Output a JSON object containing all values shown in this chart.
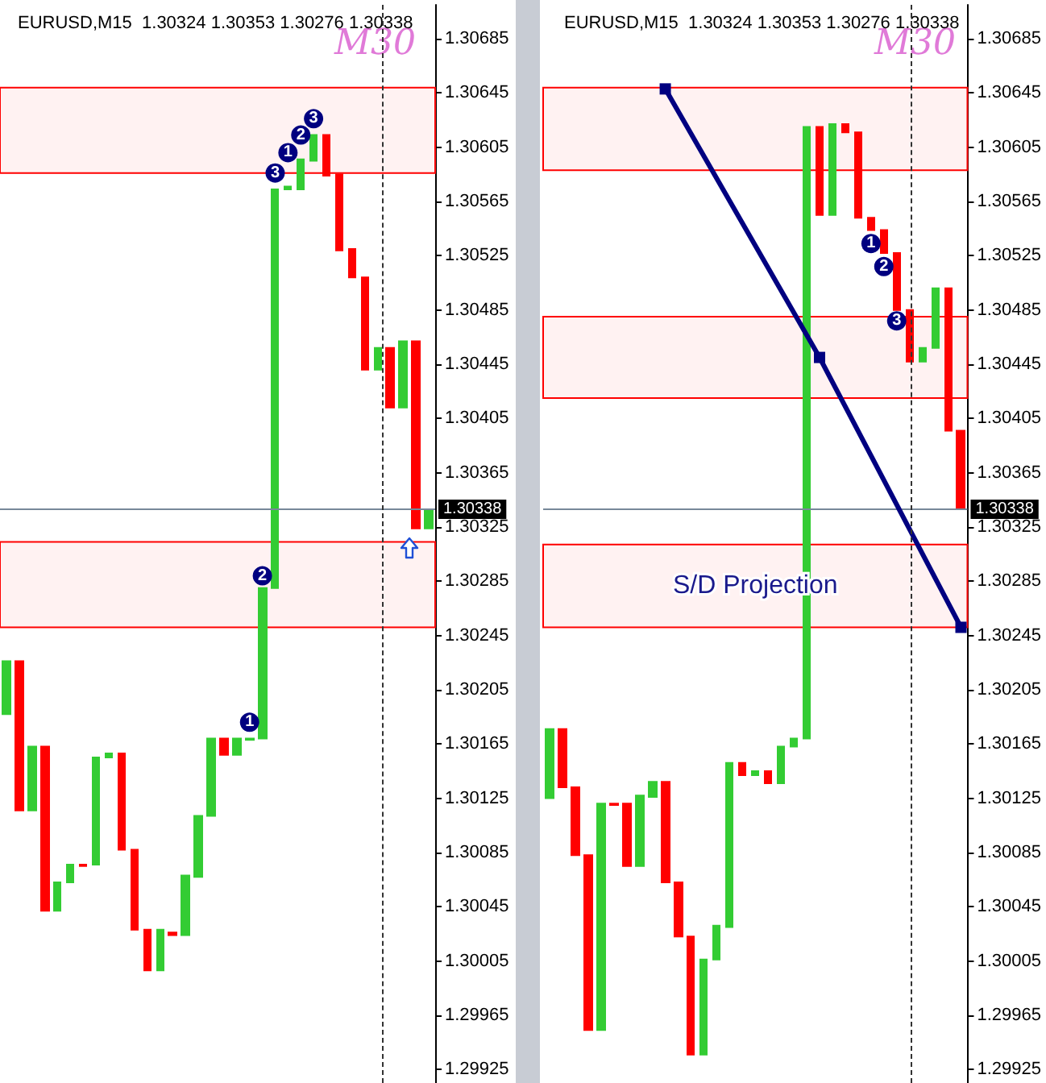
{
  "chart_data": [
    {
      "type": "candlestick",
      "title": "EURUSD,M15  1.30324 1.30353 1.30276 1.30338",
      "annotations": [
        "M30"
      ],
      "categories": [
        null,
        null,
        null,
        null,
        null,
        null,
        null,
        null,
        null,
        null,
        null,
        null,
        null,
        null,
        null,
        null,
        null,
        null,
        null,
        null,
        null,
        null,
        null,
        null,
        null,
        null,
        null,
        null,
        null,
        null,
        null,
        null,
        null,
        null
      ],
      "ylim": [
        1.29915,
        1.3071
      ],
      "yticks": [
        1.29925,
        1.29965,
        1.30005,
        1.30045,
        1.30085,
        1.30125,
        1.30165,
        1.30205,
        1.30245,
        1.30285,
        1.30325,
        1.30365,
        1.30405,
        1.30445,
        1.30485,
        1.30525,
        1.30565,
        1.30605,
        1.30645,
        1.30685
      ],
      "tick_labels": "y",
      "grid": false,
      "ohlc": [
        [
          1.30187,
          1.30226,
          1.30187,
          1.30226
        ],
        [
          1.30226,
          1.30226,
          1.30116,
          1.30116
        ],
        [
          1.30116,
          1.30163,
          1.30116,
          1.30163
        ],
        [
          1.30163,
          1.30163,
          1.30042,
          1.30042
        ],
        [
          1.30042,
          1.30063,
          1.30042,
          1.30063
        ],
        [
          1.30063,
          1.30076,
          1.30063,
          1.30076
        ],
        [
          1.30076,
          1.30076,
          1.30075,
          1.30075
        ],
        [
          1.30076,
          1.30155,
          1.30076,
          1.30155
        ],
        [
          1.30155,
          1.30158,
          1.30155,
          1.30158
        ],
        [
          1.30158,
          1.30158,
          1.30087,
          1.30087
        ],
        [
          1.30087,
          1.30087,
          1.30028,
          1.30028
        ],
        [
          1.30028,
          1.30028,
          1.29998,
          1.29998
        ],
        [
          1.29998,
          1.30028,
          1.29998,
          1.30028
        ],
        [
          1.30026,
          1.30026,
          1.30024,
          1.30024
        ],
        [
          1.30024,
          1.30068,
          1.30024,
          1.30068
        ],
        [
          1.30067,
          1.30112,
          1.30067,
          1.30112
        ],
        [
          1.30112,
          1.30169,
          1.30112,
          1.30169
        ],
        [
          1.30169,
          1.30169,
          1.30157,
          1.30157
        ],
        [
          1.30157,
          1.30169,
          1.30157,
          1.30169
        ],
        [
          1.30168,
          1.30169,
          1.30168,
          1.30169
        ],
        [
          1.30169,
          1.3028,
          1.30169,
          1.3028
        ],
        [
          1.3028,
          1.30574,
          1.3028,
          1.30574
        ],
        [
          1.30574,
          1.30576,
          1.30574,
          1.30576
        ],
        [
          1.30574,
          1.30596,
          1.30574,
          1.30596
        ],
        [
          1.30595,
          1.30614,
          1.30595,
          1.30614
        ],
        [
          1.30614,
          1.30614,
          1.30584,
          1.30584
        ],
        [
          1.30585,
          1.30585,
          1.30529,
          1.30529
        ],
        [
          1.3053,
          1.3053,
          1.30509,
          1.30509
        ],
        [
          1.30509,
          1.30509,
          1.30441,
          1.30441
        ],
        [
          1.30441,
          1.30457,
          1.30441,
          1.30457
        ],
        [
          1.30457,
          1.30457,
          1.30413,
          1.30413
        ],
        [
          1.30413,
          1.30462,
          1.30413,
          1.30462
        ],
        [
          1.30462,
          1.30462,
          1.30324,
          1.30324
        ],
        [
          1.30324,
          1.30338,
          1.30324,
          1.30338
        ]
      ],
      "colors": [
        "#33cc33",
        "#ff0000",
        "#33cc33",
        "#ff0000",
        "#33cc33",
        "#33cc33",
        "#ff0000",
        "#33cc33",
        "#33cc33",
        "#ff0000",
        "#ff0000",
        "#ff0000",
        "#33cc33",
        "#ff0000",
        "#33cc33",
        "#33cc33",
        "#33cc33",
        "#ff0000",
        "#33cc33",
        "#33cc33",
        "#33cc33",
        "#33cc33",
        "#33cc33",
        "#33cc33",
        "#33cc33",
        "#ff0000",
        "#ff0000",
        "#ff0000",
        "#ff0000",
        "#33cc33",
        "#ff0000",
        "#33cc33",
        "#ff0000",
        "#33cc33"
      ],
      "series": [
        {
          "type": "scatter",
          "name": "1",
          "marker": "circle",
          "color": "#000080",
          "values": [
            null,
            null,
            null,
            null,
            null,
            null,
            null,
            null,
            null,
            null,
            null,
            null,
            null,
            null,
            null,
            null,
            null,
            null,
            null,
            1.30181,
            null,
            null,
            1.30601,
            null,
            null,
            null,
            null,
            null,
            null,
            null,
            null,
            null,
            null,
            null
          ]
        },
        {
          "type": "scatter",
          "name": "2",
          "marker": "circle",
          "color": "#000080",
          "values": [
            null,
            null,
            null,
            null,
            null,
            null,
            null,
            null,
            null,
            null,
            null,
            null,
            null,
            null,
            null,
            null,
            null,
            null,
            null,
            null,
            1.30289,
            null,
            null,
            1.30614,
            null,
            null,
            null,
            null,
            null,
            null,
            null,
            null,
            null,
            null
          ]
        },
        {
          "type": "scatter",
          "name": "3",
          "marker": "circle",
          "color": "#000080",
          "values": [
            null,
            null,
            null,
            null,
            null,
            null,
            null,
            null,
            null,
            null,
            null,
            null,
            null,
            null,
            null,
            null,
            null,
            null,
            null,
            null,
            null,
            1.30586,
            null,
            null,
            1.30626,
            null,
            null,
            null,
            null,
            null,
            null,
            null,
            null,
            null
          ]
        }
      ],
      "bands": [
        {
          "axis": "y",
          "from": 1.30586,
          "to": 1.30649,
          "color": "#ff0000"
        },
        {
          "axis": "y",
          "from": 1.30251,
          "to": 1.30314,
          "color": "#ff0000"
        }
      ],
      "ref_lines": [
        {
          "axis": "y",
          "value": 1.30338,
          "label": "1.30338",
          "color": "#778899"
        }
      ]
    },
    {
      "type": "candlestick",
      "title": "EURUSD,M15  1.30324 1.30353 1.30276 1.30338",
      "annotations": [
        "M30"
      ],
      "categories": [
        null,
        null,
        null,
        null,
        null,
        null,
        null,
        null,
        null,
        null,
        null,
        null,
        null,
        null,
        null,
        null,
        null,
        null,
        null,
        null,
        null,
        null,
        null,
        null,
        null,
        null,
        null,
        null,
        null,
        null,
        null,
        null,
        null
      ],
      "ylim": [
        1.29915,
        1.3071
      ],
      "yticks": [
        1.29925,
        1.29965,
        1.30005,
        1.30045,
        1.30085,
        1.30125,
        1.30165,
        1.30205,
        1.30245,
        1.30285,
        1.30325,
        1.30365,
        1.30405,
        1.30445,
        1.30485,
        1.30525,
        1.30565,
        1.30605,
        1.30645,
        1.30685
      ],
      "tick_labels": "y",
      "grid": false,
      "ohlc": [
        [
          1.30125,
          1.30176,
          1.30125,
          1.30176
        ],
        [
          1.30176,
          1.30176,
          1.30133,
          1.30133
        ],
        [
          1.30133,
          1.30133,
          1.30083,
          1.30083
        ],
        [
          1.30083,
          1.30083,
          1.29954,
          1.29954
        ],
        [
          1.29954,
          1.30121,
          1.29954,
          1.30121
        ],
        [
          1.30121,
          1.30121,
          1.3012,
          1.3012
        ],
        [
          1.30121,
          1.30121,
          1.30075,
          1.30075
        ],
        [
          1.30075,
          1.30127,
          1.30075,
          1.30127
        ],
        [
          1.30126,
          1.30137,
          1.30126,
          1.30137
        ],
        [
          1.30137,
          1.30137,
          1.30063,
          1.30063
        ],
        [
          1.30063,
          1.30063,
          1.30023,
          1.30023
        ],
        [
          1.30023,
          1.30023,
          1.29936,
          1.29936
        ],
        [
          1.29936,
          1.30006,
          1.29936,
          1.30006
        ],
        [
          1.30006,
          1.30031,
          1.30006,
          1.30031
        ],
        [
          1.3003,
          1.30151,
          1.3003,
          1.30151
        ],
        [
          1.30151,
          1.30151,
          1.30142,
          1.30142
        ],
        [
          1.30142,
          1.30145,
          1.30142,
          1.30145
        ],
        [
          1.30145,
          1.30145,
          1.30136,
          1.30136
        ],
        [
          1.30136,
          1.30163,
          1.30136,
          1.30163
        ],
        [
          1.30163,
          1.30169,
          1.30163,
          1.30169
        ],
        [
          1.30169,
          1.3062,
          1.30169,
          1.3062
        ],
        [
          1.3062,
          1.3062,
          1.30555,
          1.30555
        ],
        [
          1.30555,
          1.30622,
          1.30555,
          1.30622
        ],
        [
          1.30622,
          1.30622,
          1.30616,
          1.30616
        ],
        [
          1.30616,
          1.30616,
          1.30553,
          1.30553
        ],
        [
          1.30553,
          1.30553,
          1.30544,
          1.30544
        ],
        [
          1.30544,
          1.30544,
          1.30527,
          1.30527
        ],
        [
          1.30527,
          1.30527,
          1.30485,
          1.30485
        ],
        [
          1.30485,
          1.30485,
          1.30447,
          1.30447
        ],
        [
          1.30447,
          1.30457,
          1.30447,
          1.30457
        ],
        [
          1.30457,
          1.30501,
          1.30457,
          1.30501
        ],
        [
          1.30501,
          1.30501,
          1.30396,
          1.30396
        ],
        [
          1.30396,
          1.30396,
          1.30338,
          1.30338
        ]
      ],
      "colors": [
        "#33cc33",
        "#ff0000",
        "#ff0000",
        "#ff0000",
        "#33cc33",
        "#ff0000",
        "#ff0000",
        "#33cc33",
        "#33cc33",
        "#ff0000",
        "#ff0000",
        "#ff0000",
        "#33cc33",
        "#33cc33",
        "#33cc33",
        "#ff0000",
        "#33cc33",
        "#ff0000",
        "#33cc33",
        "#33cc33",
        "#33cc33",
        "#ff0000",
        "#33cc33",
        "#ff0000",
        "#ff0000",
        "#ff0000",
        "#ff0000",
        "#ff0000",
        "#ff0000",
        "#33cc33",
        "#33cc33",
        "#ff0000",
        "#ff0000"
      ],
      "series": [
        {
          "type": "line",
          "marker": "square",
          "color": "#000080",
          "values": [
            null,
            null,
            null,
            null,
            null,
            null,
            null,
            null,
            null,
            1.30648,
            null,
            null,
            null,
            null,
            null,
            null,
            null,
            null,
            null,
            null,
            null,
            1.3045,
            null,
            null,
            null,
            null,
            null,
            null,
            null,
            null,
            null,
            null,
            1.30251
          ]
        },
        {
          "type": "scatter",
          "name": "1",
          "marker": "circle",
          "color": "#000080",
          "values": [
            null,
            null,
            null,
            null,
            null,
            null,
            null,
            null,
            null,
            null,
            null,
            null,
            null,
            null,
            null,
            null,
            null,
            null,
            null,
            null,
            null,
            null,
            null,
            null,
            null,
            1.30534,
            null,
            null,
            null,
            null,
            null,
            null,
            null
          ]
        },
        {
          "type": "scatter",
          "name": "2",
          "marker": "circle",
          "color": "#000080",
          "values": [
            null,
            null,
            null,
            null,
            null,
            null,
            null,
            null,
            null,
            null,
            null,
            null,
            null,
            null,
            null,
            null,
            null,
            null,
            null,
            null,
            null,
            null,
            null,
            null,
            null,
            null,
            1.30517,
            null,
            null,
            null,
            null,
            null,
            null
          ]
        },
        {
          "type": "scatter",
          "name": "3",
          "marker": "circle",
          "color": "#000080",
          "values": [
            null,
            null,
            null,
            null,
            null,
            null,
            null,
            null,
            null,
            null,
            null,
            null,
            null,
            null,
            null,
            null,
            null,
            null,
            null,
            null,
            null,
            null,
            null,
            null,
            null,
            null,
            null,
            1.30477,
            null,
            null,
            null,
            null,
            null
          ]
        }
      ],
      "bands": [
        {
          "axis": "y",
          "from": 1.30588,
          "to": 1.30649,
          "color": "#ff0000"
        },
        {
          "axis": "y",
          "from": 1.3042,
          "to": 1.3048,
          "color": "#ff0000"
        },
        {
          "axis": "y",
          "from": 1.30251,
          "to": 1.30312,
          "color": "#ff0000",
          "label": "S/D Projection"
        }
      ],
      "ref_lines": [
        {
          "axis": "y",
          "value": 1.30338,
          "label": "1.30338",
          "color": "#778899"
        }
      ]
    }
  ]
}
